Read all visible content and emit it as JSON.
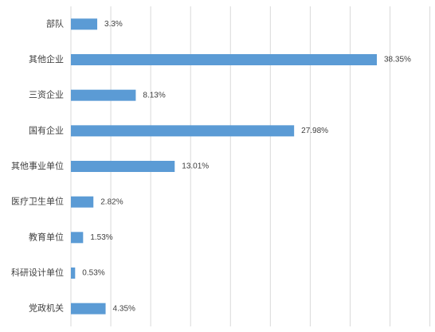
{
  "chart_data": {
    "type": "bar",
    "orientation": "horizontal",
    "categories": [
      "部队",
      "其他企业",
      "三资企业",
      "国有企业",
      "其他事业单位",
      "医疗卫生单位",
      "教育单位",
      "科研设计单位",
      "党政机关"
    ],
    "values": [
      3.3,
      38.35,
      8.13,
      27.98,
      13.01,
      2.82,
      1.53,
      0.53,
      4.35
    ],
    "data_labels": [
      "3.3%",
      "38.35%",
      "8.13%",
      "27.98%",
      "13.01%",
      "2.82%",
      "1.53%",
      "0.53%",
      "4.35%"
    ],
    "title": "",
    "xlabel": "",
    "ylabel": "",
    "xlim": [
      0,
      45
    ],
    "grid": "vertical",
    "legend": "none",
    "bar_color": "#5B9BD5"
  }
}
